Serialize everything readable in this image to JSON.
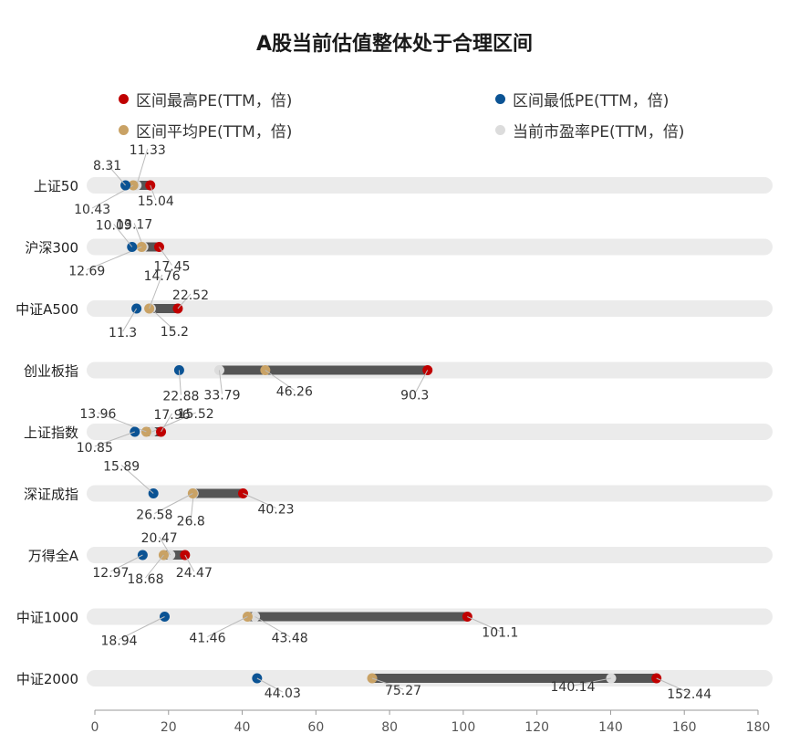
{
  "chart_data": {
    "type": "dot-range",
    "title": "A股当前估值整体处于合理区间",
    "legend": [
      {
        "key": "max",
        "label": "区间最高PE(TTM，倍)",
        "color": "#c00000"
      },
      {
        "key": "min",
        "label": "区间最低PE(TTM，倍)",
        "color": "#0b5394"
      },
      {
        "key": "avg",
        "label": "区间平均PE(TTM，倍)",
        "color": "#c9a265"
      },
      {
        "key": "cur",
        "label": "当前市盈率PE(TTM，倍)",
        "color": "#dcdcdc"
      }
    ],
    "categories": [
      "上证50",
      "沪深300",
      "中证A500",
      "创业板指",
      "上证指数",
      "深证成指",
      "万得全A",
      "中证1000",
      "中证2000"
    ],
    "series": [
      {
        "name": "区间最高PE(TTM，倍)",
        "key": "max",
        "values": [
          15.04,
          17.45,
          22.52,
          90.3,
          17.96,
          40.23,
          24.47,
          101.1,
          152.44
        ]
      },
      {
        "name": "区间最低PE(TTM，倍)",
        "key": "min",
        "values": [
          8.31,
          10.09,
          11.3,
          22.88,
          10.85,
          15.89,
          12.97,
          18.94,
          44.03
        ]
      },
      {
        "name": "区间平均PE(TTM，倍)",
        "key": "avg",
        "values": [
          10.43,
          12.69,
          14.76,
          46.26,
          13.96,
          26.58,
          18.68,
          41.46,
          75.27
        ]
      },
      {
        "name": "当前市盈率PE(TTM，倍)",
        "key": "cur",
        "values": [
          11.33,
          13.17,
          15.2,
          33.79,
          15.52,
          26.8,
          20.47,
          43.48,
          140.14
        ]
      }
    ],
    "xlim": [
      0,
      180
    ],
    "xticks": [
      0,
      20,
      40,
      60,
      80,
      100,
      120,
      140,
      160,
      180
    ],
    "grid": false,
    "legend_position": "top"
  }
}
